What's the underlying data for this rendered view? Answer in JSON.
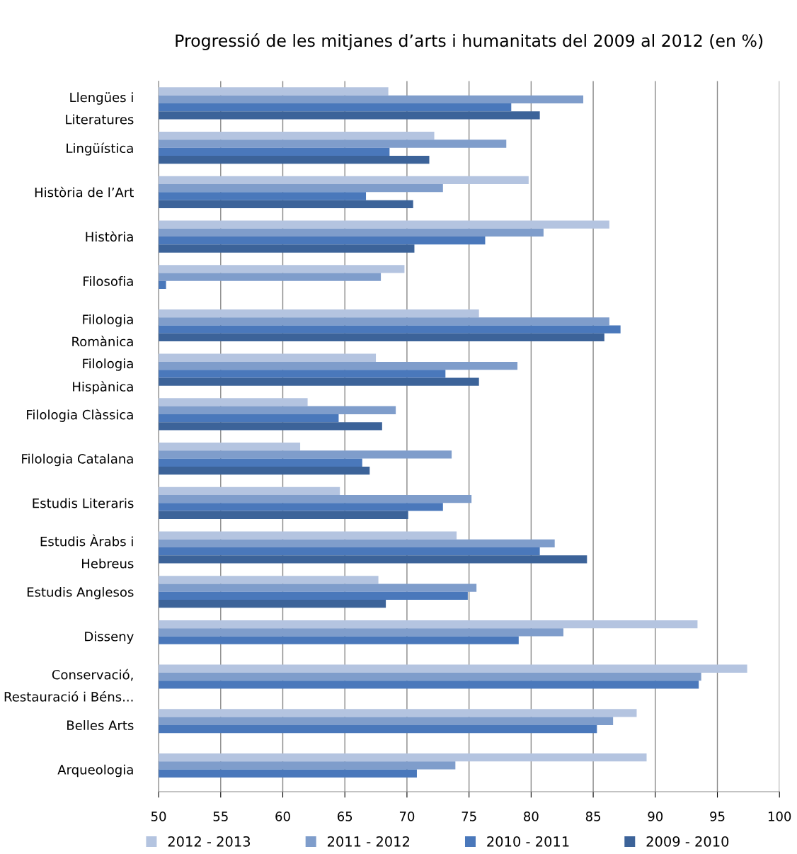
{
  "chart_data": {
    "type": "bar",
    "orientation": "horizontal",
    "title": "Progressió de les mitjanes d’arts i humanitats del 2009 al 2012 (en %)",
    "categories": [
      "Llengües i\nLiteratures",
      "Lingüística",
      "Història de l’Art",
      "Història",
      "Filosofia",
      "Filologia\nRomànica",
      "Filologia\nHispànica",
      "Filologia Clàssica",
      "Filologia Catalana",
      "Estudis Literaris",
      "Estudis Àrabs i\nHebreus",
      "Estudis Anglesos",
      "Disseny",
      "Conservació,\nRestauració i Béns...",
      "Belles Arts",
      "Arqueologia"
    ],
    "series": [
      {
        "name": "2012 - 2013",
        "color": "#b4c4e0",
        "values": [
          68.5,
          72.2,
          79.8,
          86.3,
          69.8,
          75.8,
          67.5,
          62.0,
          61.4,
          64.6,
          74.0,
          67.7,
          93.4,
          97.4,
          88.5,
          89.3
        ]
      },
      {
        "name": "2011 - 2012",
        "color": "#7f9dcb",
        "values": [
          84.2,
          78.0,
          72.9,
          81.0,
          67.9,
          86.3,
          78.9,
          69.1,
          73.6,
          75.2,
          81.9,
          75.6,
          82.6,
          93.7,
          86.6,
          73.9
        ]
      },
      {
        "name": "2010 - 2011",
        "color": "#4a78bb",
        "values": [
          78.4,
          68.6,
          66.7,
          76.3,
          50.6,
          87.2,
          73.1,
          64.5,
          66.4,
          72.9,
          80.7,
          74.9,
          79.0,
          93.5,
          85.3,
          70.8
        ]
      },
      {
        "name": "2009 - 2010",
        "color": "#3c6399",
        "values": [
          80.7,
          71.8,
          70.5,
          70.6,
          null,
          85.9,
          75.8,
          68.0,
          67.0,
          70.1,
          84.5,
          68.3,
          null,
          null,
          null,
          null
        ]
      }
    ],
    "xlim": [
      50,
      100
    ],
    "xticks": [
      50,
      55,
      60,
      65,
      70,
      75,
      80,
      85,
      90,
      95,
      100
    ],
    "grid": "x",
    "legend": "bottom"
  }
}
